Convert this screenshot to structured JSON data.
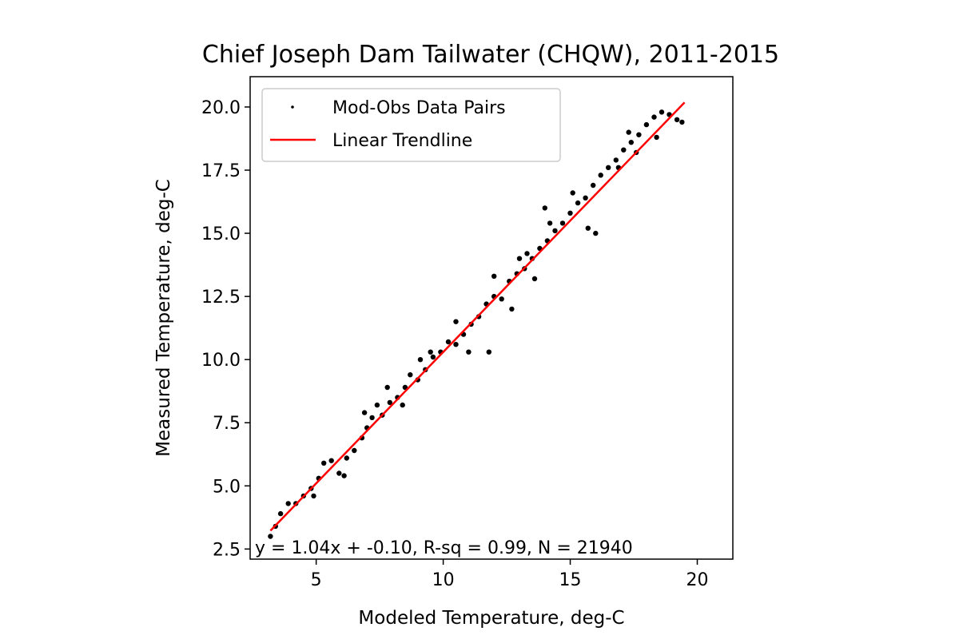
{
  "chart_data": {
    "type": "scatter",
    "title": "Chief Joseph Dam Tailwater (CHQW), 2011-2015",
    "xlabel": "Modeled Temperature, deg-C",
    "ylabel": "Measured Temperature, deg-C",
    "xlim": [
      2.4,
      21.4
    ],
    "ylim": [
      2.1,
      21.2
    ],
    "xticks": [
      5,
      10,
      15,
      20
    ],
    "xtick_labels": [
      "5",
      "10",
      "15",
      "20"
    ],
    "yticks": [
      2.5,
      5.0,
      7.5,
      10.0,
      12.5,
      15.0,
      17.5,
      20.0
    ],
    "ytick_labels": [
      "2.5",
      "5.0",
      "7.5",
      "10.0",
      "12.5",
      "15.0",
      "17.5",
      "20.0"
    ],
    "grid": false,
    "legend": {
      "location": "upper-left",
      "entries": [
        {
          "label": "Mod-Obs Data Pairs",
          "marker": "dot",
          "color": "#000000"
        },
        {
          "label": "Linear Trendline",
          "marker": "line",
          "color": "#ff0000"
        }
      ]
    },
    "annotation": "y = 1.04x + -0.10, R-sq = 0.99, N = 21940",
    "series": [
      {
        "name": "Mod-Obs Data Pairs",
        "kind": "scatter",
        "color": "#000000",
        "points": [
          [
            3.2,
            3.0
          ],
          [
            3.4,
            3.4
          ],
          [
            3.6,
            3.9
          ],
          [
            3.9,
            4.3
          ],
          [
            4.2,
            4.3
          ],
          [
            4.5,
            4.6
          ],
          [
            4.8,
            4.9
          ],
          [
            5.1,
            5.3
          ],
          [
            5.3,
            5.9
          ],
          [
            5.6,
            6.0
          ],
          [
            5.9,
            5.5
          ],
          [
            6.2,
            6.1
          ],
          [
            6.5,
            6.4
          ],
          [
            6.8,
            6.9
          ],
          [
            7.0,
            7.3
          ],
          [
            7.2,
            7.7
          ],
          [
            7.4,
            8.2
          ],
          [
            7.6,
            7.8
          ],
          [
            7.9,
            8.3
          ],
          [
            8.2,
            8.5
          ],
          [
            8.5,
            8.9
          ],
          [
            8.7,
            9.4
          ],
          [
            9.0,
            9.2
          ],
          [
            9.3,
            9.6
          ],
          [
            9.6,
            10.1
          ],
          [
            9.9,
            10.3
          ],
          [
            10.2,
            10.7
          ],
          [
            10.5,
            10.6
          ],
          [
            10.8,
            11.0
          ],
          [
            11.1,
            11.4
          ],
          [
            11.4,
            11.7
          ],
          [
            11.7,
            12.2
          ],
          [
            12.0,
            12.5
          ],
          [
            12.3,
            12.4
          ],
          [
            12.6,
            13.1
          ],
          [
            12.9,
            13.4
          ],
          [
            13.2,
            13.6
          ],
          [
            13.5,
            14.0
          ],
          [
            13.8,
            14.4
          ],
          [
            14.1,
            14.7
          ],
          [
            14.4,
            15.1
          ],
          [
            14.7,
            15.4
          ],
          [
            15.0,
            15.8
          ],
          [
            15.3,
            16.2
          ],
          [
            15.6,
            16.4
          ],
          [
            15.9,
            16.9
          ],
          [
            16.2,
            17.3
          ],
          [
            16.5,
            17.6
          ],
          [
            16.8,
            17.9
          ],
          [
            17.1,
            18.3
          ],
          [
            17.4,
            18.6
          ],
          [
            17.7,
            18.9
          ],
          [
            18.0,
            19.3
          ],
          [
            18.3,
            19.6
          ],
          [
            18.6,
            19.8
          ],
          [
            18.9,
            19.7
          ],
          [
            19.2,
            19.5
          ],
          [
            19.4,
            19.4
          ],
          [
            4.9,
            4.6
          ],
          [
            6.1,
            5.4
          ],
          [
            6.9,
            7.9
          ],
          [
            8.4,
            8.2
          ],
          [
            9.5,
            10.3
          ],
          [
            11.0,
            10.3
          ],
          [
            11.8,
            10.3
          ],
          [
            12.0,
            13.3
          ],
          [
            13.0,
            14.0
          ],
          [
            13.6,
            13.2
          ],
          [
            14.2,
            15.4
          ],
          [
            15.7,
            15.2
          ],
          [
            16.0,
            15.0
          ],
          [
            14.0,
            16.0
          ],
          [
            13.3,
            14.2
          ],
          [
            16.9,
            17.6
          ],
          [
            17.6,
            18.2
          ],
          [
            18.4,
            18.8
          ],
          [
            10.5,
            11.5
          ],
          [
            9.1,
            10.0
          ],
          [
            7.8,
            8.9
          ],
          [
            12.7,
            12.0
          ],
          [
            15.1,
            16.6
          ],
          [
            17.3,
            19.0
          ]
        ]
      },
      {
        "name": "Linear Trendline",
        "kind": "line",
        "color": "#ff0000",
        "slope": 1.04,
        "intercept": -0.1,
        "x_range": [
          3.2,
          19.5
        ]
      }
    ]
  }
}
